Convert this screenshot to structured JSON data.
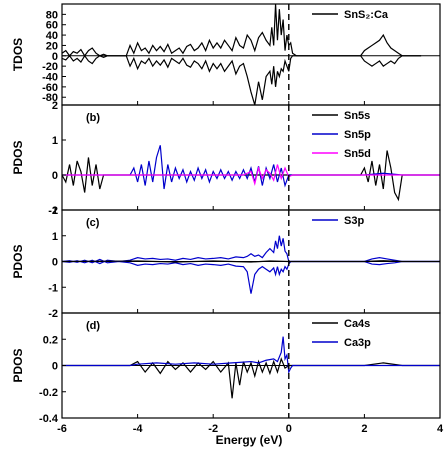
{
  "chart_data": {
    "type": "line",
    "xlabel": "Energy (eV)",
    "xlim": [
      -6,
      4
    ],
    "xticks": [
      -6,
      -4,
      -2,
      0,
      2,
      4
    ],
    "fermi_level": 0,
    "panels": [
      {
        "letter": "",
        "ylabel": "TDOS",
        "ylim": [
          -95,
          100
        ],
        "yticks": [
          -80,
          -60,
          -40,
          -20,
          0,
          20,
          40,
          60,
          80
        ],
        "series": [
          {
            "name": "SnS₂:Ca",
            "color": "#000000",
            "x": [
              -6.0,
              -5.9,
              -5.8,
              -5.7,
              -5.6,
              -5.5,
              -5.4,
              -5.3,
              -5.2,
              -5.1,
              -5.0,
              -4.9,
              -4.8,
              -4.5,
              -4.3,
              -4.2,
              -4.1,
              -4.0,
              -3.9,
              -3.8,
              -3.7,
              -3.6,
              -3.5,
              -3.4,
              -3.3,
              -3.2,
              -3.1,
              -3.0,
              -2.9,
              -2.8,
              -2.7,
              -2.6,
              -2.5,
              -2.4,
              -2.3,
              -2.2,
              -2.1,
              -2.0,
              -1.9,
              -1.8,
              -1.7,
              -1.6,
              -1.5,
              -1.4,
              -1.3,
              -1.2,
              -1.1,
              -1.0,
              -0.9,
              -0.8,
              -0.7,
              -0.6,
              -0.5,
              -0.45,
              -0.4,
              -0.35,
              -0.3,
              -0.25,
              -0.2,
              -0.15,
              -0.1,
              -0.05,
              0.0,
              0.05,
              0.1,
              0.2,
              0.3,
              0.5,
              1.0,
              1.5,
              1.9,
              2.0,
              2.1,
              2.2,
              2.3,
              2.4,
              2.5,
              2.6,
              2.7,
              2.8,
              2.9,
              3.0,
              3.5
            ],
            "values": [
              5,
              10,
              0,
              8,
              5,
              12,
              0,
              10,
              15,
              5,
              0,
              3,
              0,
              0,
              0,
              20,
              5,
              25,
              10,
              15,
              5,
              20,
              10,
              18,
              8,
              22,
              5,
              10,
              15,
              5,
              18,
              22,
              10,
              15,
              25,
              10,
              30,
              15,
              25,
              15,
              30,
              20,
              10,
              35,
              20,
              15,
              40,
              30,
              10,
              35,
              45,
              30,
              20,
              55,
              20,
              100,
              30,
              90,
              40,
              70,
              10,
              40,
              20,
              25,
              5,
              0,
              0,
              0,
              0,
              0,
              0,
              10,
              15,
              20,
              25,
              30,
              40,
              25,
              15,
              10,
              5,
              0,
              0
            ]
          },
          {
            "name": "",
            "color": "#000000",
            "x": [
              -6.0,
              -5.9,
              -5.8,
              -5.7,
              -5.6,
              -5.5,
              -5.4,
              -5.3,
              -5.2,
              -5.1,
              -5.0,
              -4.9,
              -4.8,
              -4.5,
              -4.3,
              -4.2,
              -4.1,
              -4.0,
              -3.9,
              -3.8,
              -3.7,
              -3.6,
              -3.5,
              -3.4,
              -3.3,
              -3.2,
              -3.1,
              -3.0,
              -2.9,
              -2.8,
              -2.7,
              -2.6,
              -2.5,
              -2.4,
              -2.3,
              -2.2,
              -2.1,
              -2.0,
              -1.9,
              -1.8,
              -1.7,
              -1.6,
              -1.5,
              -1.4,
              -1.3,
              -1.2,
              -1.1,
              -1.0,
              -0.9,
              -0.8,
              -0.7,
              -0.6,
              -0.5,
              -0.45,
              -0.4,
              -0.35,
              -0.3,
              -0.25,
              -0.2,
              -0.15,
              -0.1,
              -0.05,
              0.0,
              0.05,
              0.1,
              0.2,
              0.3,
              0.5,
              1.0,
              1.5,
              1.9,
              2.0,
              2.1,
              2.2,
              2.3,
              2.4,
              2.5,
              2.6,
              2.7,
              2.8,
              2.9,
              3.0,
              3.5
            ],
            "values": [
              -5,
              -8,
              0,
              -10,
              -5,
              -12,
              0,
              -10,
              -15,
              -5,
              0,
              -3,
              0,
              0,
              0,
              -20,
              -5,
              -25,
              -10,
              -15,
              -5,
              -20,
              -10,
              -18,
              -8,
              -22,
              -5,
              -10,
              -15,
              -5,
              -18,
              -22,
              -10,
              -15,
              -25,
              -10,
              -30,
              -15,
              -25,
              -15,
              -30,
              -20,
              -10,
              -35,
              -20,
              -15,
              -40,
              -70,
              -95,
              -50,
              -85,
              -40,
              -30,
              -55,
              -20,
              -60,
              -30,
              -40,
              -25,
              -30,
              -10,
              -20,
              -30,
              -5,
              0,
              0,
              0,
              0,
              0,
              0,
              0,
              -10,
              -15,
              -20,
              -15,
              -10,
              -20,
              -15,
              -10,
              -15,
              -5,
              0,
              0
            ]
          }
        ]
      },
      {
        "letter": "(b)",
        "ylabel": "PDOS",
        "ylim": [
          -1,
          2
        ],
        "yticks": [
          -1,
          0,
          1,
          2
        ],
        "series": [
          {
            "name": "Sn5s",
            "color": "#000000",
            "x": [
              -6.0,
              -5.9,
              -5.8,
              -5.7,
              -5.6,
              -5.5,
              -5.4,
              -5.3,
              -5.2,
              -5.1,
              -5.0,
              -4.9,
              -4.0,
              -3.0,
              -2.0,
              -1.0,
              -0.5,
              0.0,
              1.0,
              1.9,
              2.0,
              2.1,
              2.2,
              2.3,
              2.4,
              2.5,
              2.6,
              2.7,
              2.8,
              2.9,
              3.0,
              4.0
            ],
            "values": [
              0.0,
              -0.2,
              0.3,
              -0.3,
              0.4,
              0.1,
              -0.5,
              0.5,
              -0.3,
              0.3,
              -0.4,
              0.0,
              0.0,
              0.0,
              0.0,
              0.0,
              0.0,
              0.0,
              0.0,
              0.0,
              0.2,
              -0.2,
              0.4,
              -0.3,
              0.3,
              -0.4,
              0.7,
              0.2,
              -0.5,
              -0.7,
              0.0,
              0.0
            ]
          },
          {
            "name": "Sn5p",
            "color": "#0000cc",
            "x": [
              -6.0,
              -5.0,
              -4.2,
              -4.1,
              -4.0,
              -3.9,
              -3.8,
              -3.7,
              -3.6,
              -3.5,
              -3.4,
              -3.3,
              -3.2,
              -3.1,
              -3.0,
              -2.9,
              -2.8,
              -2.7,
              -2.6,
              -2.5,
              -2.4,
              -2.3,
              -2.2,
              -2.1,
              -2.0,
              -1.9,
              -1.8,
              -1.7,
              -1.6,
              -1.5,
              -1.4,
              -1.3,
              -1.2,
              -1.1,
              -1.0,
              -0.9,
              -0.8,
              -0.7,
              -0.6,
              -0.5,
              -0.4,
              -0.3,
              -0.2,
              -0.1,
              0.0,
              0.1,
              2.0,
              2.5,
              3.0,
              4.0
            ],
            "values": [
              0.0,
              0.0,
              0.0,
              0.2,
              -0.2,
              0.3,
              -0.3,
              0.4,
              -0.2,
              0.5,
              0.85,
              -0.4,
              0.3,
              -0.2,
              0.2,
              -0.1,
              0.15,
              -0.2,
              0.1,
              -0.15,
              0.2,
              -0.1,
              0.15,
              -0.2,
              0.1,
              -0.1,
              0.15,
              -0.1,
              0.1,
              -0.15,
              0.1,
              -0.1,
              0.15,
              -0.1,
              0.2,
              -0.2,
              0.25,
              -0.3,
              0.2,
              -0.1,
              0.3,
              -0.2,
              0.2,
              -0.3,
              0.0,
              0.0,
              0.0,
              0.05,
              0.0,
              0.0
            ]
          },
          {
            "name": "Sn5d",
            "color": "#ff00ff",
            "x": [
              -6.0,
              -1.2,
              -1.0,
              -0.9,
              -0.8,
              -0.7,
              -0.6,
              -0.5,
              -0.4,
              -0.3,
              -0.2,
              -0.1,
              0.0,
              0.1,
              4.0
            ],
            "values": [
              0.0,
              0.0,
              0.1,
              -0.25,
              0.2,
              -0.1,
              0.15,
              0.05,
              -0.15,
              0.3,
              -0.1,
              0.2,
              -0.05,
              0.0,
              0.0
            ]
          }
        ]
      },
      {
        "letter": "(c)",
        "ylabel": "PDOS",
        "ylim": [
          -2,
          2
        ],
        "yticks": [
          -2,
          -1,
          0,
          1,
          2
        ],
        "series": [
          {
            "name": "S3p",
            "color": "#0000cc",
            "x": [
              -6.0,
              -5.8,
              -5.6,
              -5.4,
              -5.2,
              -5.0,
              -4.8,
              -4.5,
              -4.2,
              -4.0,
              -3.8,
              -3.6,
              -3.4,
              -3.2,
              -3.0,
              -2.8,
              -2.6,
              -2.4,
              -2.2,
              -2.0,
              -1.8,
              -1.6,
              -1.4,
              -1.2,
              -1.1,
              -1.0,
              -0.9,
              -0.8,
              -0.7,
              -0.6,
              -0.5,
              -0.4,
              -0.35,
              -0.3,
              -0.25,
              -0.2,
              -0.15,
              -0.1,
              -0.05,
              0.0,
              0.05,
              0.1,
              2.0,
              2.2,
              2.4,
              2.6,
              2.8,
              3.0,
              4.0
            ],
            "values": [
              0.0,
              0.03,
              -0.03,
              0.05,
              -0.05,
              0.08,
              -0.05,
              0.0,
              0.05,
              0.15,
              0.1,
              0.12,
              0.08,
              0.1,
              0.05,
              0.12,
              0.08,
              0.15,
              0.1,
              0.12,
              0.15,
              0.1,
              0.18,
              0.15,
              0.2,
              0.3,
              0.2,
              0.25,
              0.15,
              0.35,
              0.5,
              0.35,
              0.8,
              0.5,
              1.0,
              0.6,
              0.9,
              0.4,
              0.3,
              0.0,
              0.0,
              0.0,
              0.0,
              0.1,
              0.15,
              0.1,
              0.05,
              0.0,
              0.0
            ]
          },
          {
            "name": "",
            "color": "#0000cc",
            "x": [
              -6.0,
              -5.8,
              -5.6,
              -5.4,
              -5.2,
              -5.0,
              -4.8,
              -4.5,
              -4.2,
              -4.0,
              -3.8,
              -3.6,
              -3.4,
              -3.2,
              -3.0,
              -2.8,
              -2.6,
              -2.4,
              -2.2,
              -2.0,
              -1.8,
              -1.6,
              -1.4,
              -1.2,
              -1.1,
              -1.0,
              -0.9,
              -0.8,
              -0.7,
              -0.6,
              -0.5,
              -0.4,
              -0.35,
              -0.3,
              -0.25,
              -0.2,
              -0.15,
              -0.1,
              -0.05,
              0.0,
              0.05,
              0.1,
              2.0,
              2.2,
              2.4,
              2.6,
              2.8,
              3.0,
              4.0
            ],
            "values": [
              0.0,
              -0.03,
              0.03,
              -0.05,
              0.05,
              -0.08,
              0.05,
              0.0,
              -0.05,
              -0.15,
              -0.1,
              -0.12,
              -0.08,
              -0.1,
              -0.05,
              -0.12,
              -0.08,
              -0.15,
              -0.1,
              -0.12,
              -0.15,
              -0.1,
              -0.18,
              -0.2,
              -0.4,
              -1.25,
              -0.5,
              -0.3,
              -0.2,
              -0.3,
              -0.4,
              -0.25,
              -0.5,
              -0.2,
              -0.5,
              -0.3,
              -0.4,
              -0.2,
              -0.3,
              -0.1,
              0.0,
              0.0,
              0.0,
              -0.1,
              -0.12,
              -0.08,
              -0.05,
              0.0,
              0.0
            ]
          },
          {
            "name": "",
            "color": "#000000",
            "x": [
              -6.0,
              -4.0,
              -3.0,
              -2.0,
              -1.0,
              -0.5,
              0.0,
              2.0,
              2.5,
              3.0,
              4.0
            ],
            "values": [
              0.0,
              0.02,
              -0.02,
              0.02,
              -0.02,
              0.02,
              0.0,
              0.0,
              0.03,
              0.0,
              0.0
            ]
          }
        ]
      },
      {
        "letter": "(d)",
        "ylabel": "PDOS",
        "ylim": [
          -0.4,
          0.4
        ],
        "yticks": [
          -0.4,
          -0.2,
          0.0,
          0.2
        ],
        "series": [
          {
            "name": "Ca4s",
            "color": "#000000",
            "x": [
              -6.0,
              -5.0,
              -4.2,
              -4.0,
              -3.8,
              -3.6,
              -3.4,
              -3.2,
              -3.0,
              -2.8,
              -2.6,
              -2.4,
              -2.2,
              -2.0,
              -1.8,
              -1.6,
              -1.5,
              -1.4,
              -1.3,
              -1.2,
              -1.1,
              -1.0,
              -0.9,
              -0.8,
              -0.7,
              -0.6,
              -0.5,
              -0.4,
              -0.3,
              -0.2,
              -0.1,
              0.0,
              0.1,
              2.0,
              2.5,
              3.0,
              4.0
            ],
            "values": [
              0.0,
              0.0,
              0.0,
              0.03,
              -0.05,
              0.02,
              -0.06,
              0.03,
              -0.03,
              0.02,
              -0.05,
              0.02,
              -0.03,
              0.03,
              -0.05,
              0.02,
              -0.25,
              0.02,
              -0.15,
              0.03,
              -0.05,
              0.02,
              -0.08,
              0.03,
              -0.05,
              0.02,
              -0.06,
              0.03,
              -0.05,
              0.05,
              -0.02,
              0.0,
              0.0,
              0.0,
              0.02,
              0.0,
              0.0
            ]
          },
          {
            "name": "Ca3p",
            "color": "#0000cc",
            "x": [
              -6.0,
              -4.2,
              -4.0,
              -3.5,
              -3.0,
              -2.5,
              -2.0,
              -1.5,
              -1.0,
              -0.8,
              -0.6,
              -0.4,
              -0.3,
              -0.2,
              -0.15,
              -0.1,
              -0.05,
              0.0,
              0.05,
              0.1,
              4.0
            ],
            "values": [
              0.0,
              0.0,
              0.01,
              0.02,
              0.01,
              0.02,
              0.01,
              0.02,
              0.03,
              0.02,
              0.04,
              0.05,
              0.03,
              0.1,
              0.22,
              0.05,
              0.08,
              -0.05,
              -0.02,
              0.0,
              0.0
            ]
          }
        ]
      }
    ]
  }
}
